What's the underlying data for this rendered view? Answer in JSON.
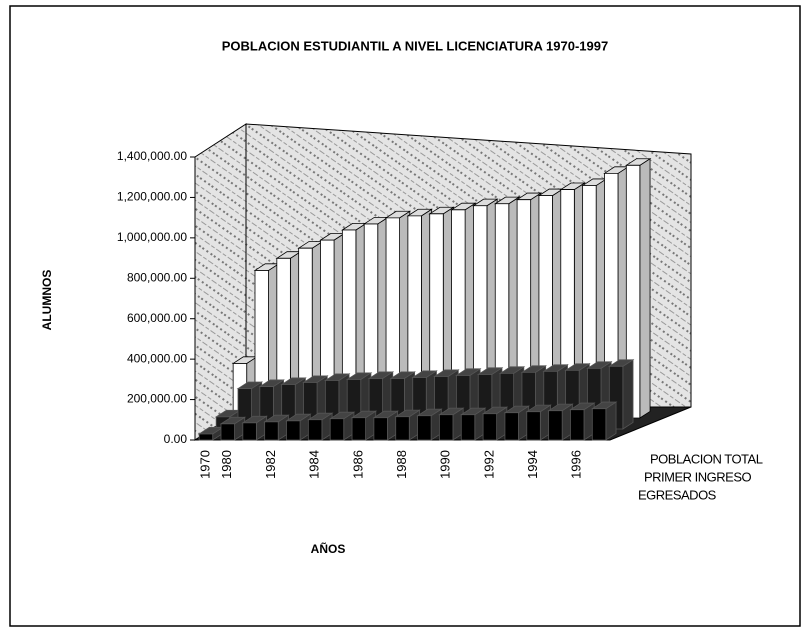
{
  "chart_data": {
    "type": "bar3d",
    "title": "POBLACION ESTUDIANTIL A NIVEL LICENCIATURA 1970-1997",
    "y_label": "ALUMNOS",
    "x_label": "AÑOS",
    "categories": [
      "1970",
      "1980",
      null,
      "1982",
      null,
      "1984",
      null,
      "1986",
      null,
      "1988",
      null,
      "1990",
      null,
      "1992",
      null,
      "1994",
      null,
      "1996",
      null
    ],
    "series": [
      {
        "name": "POBLACION TOTAL",
        "color": "#ffffff",
        "values": [
          270000,
          730000,
          790000,
          840000,
          880000,
          930000,
          960000,
          990000,
          1000000,
          1010000,
          1030000,
          1050000,
          1060000,
          1080000,
          1100000,
          1130000,
          1150000,
          1210000,
          1250000
        ]
      },
      {
        "name": "PRIMER INGRESO",
        "color": "#1a1a1a",
        "values": [
          60000,
          200000,
          210000,
          220000,
          230000,
          240000,
          245000,
          250000,
          250000,
          255000,
          260000,
          265000,
          270000,
          275000,
          280000,
          285000,
          290000,
          300000,
          310000
        ]
      },
      {
        "name": "EGRESADOS",
        "color": "#000000",
        "values": [
          30000,
          80000,
          85000,
          90000,
          95000,
          100000,
          105000,
          110000,
          110000,
          115000,
          120000,
          125000,
          125000,
          130000,
          135000,
          140000,
          145000,
          150000,
          155000
        ]
      }
    ],
    "ylim": [
      0,
      1400000
    ],
    "yticks": [
      {
        "value": 0,
        "label": "0.00"
      },
      {
        "value": 200000,
        "label": "200,000.00"
      },
      {
        "value": 400000,
        "label": "400,000.00"
      },
      {
        "value": 600000,
        "label": "600,000.00"
      },
      {
        "value": 800000,
        "label": "800,000.00"
      },
      {
        "value": 1000000,
        "label": "1,000,000.00"
      },
      {
        "value": 1200000,
        "label": "1,200,000.00"
      },
      {
        "value": 1400000,
        "label": "1,400,000.00"
      }
    ]
  }
}
